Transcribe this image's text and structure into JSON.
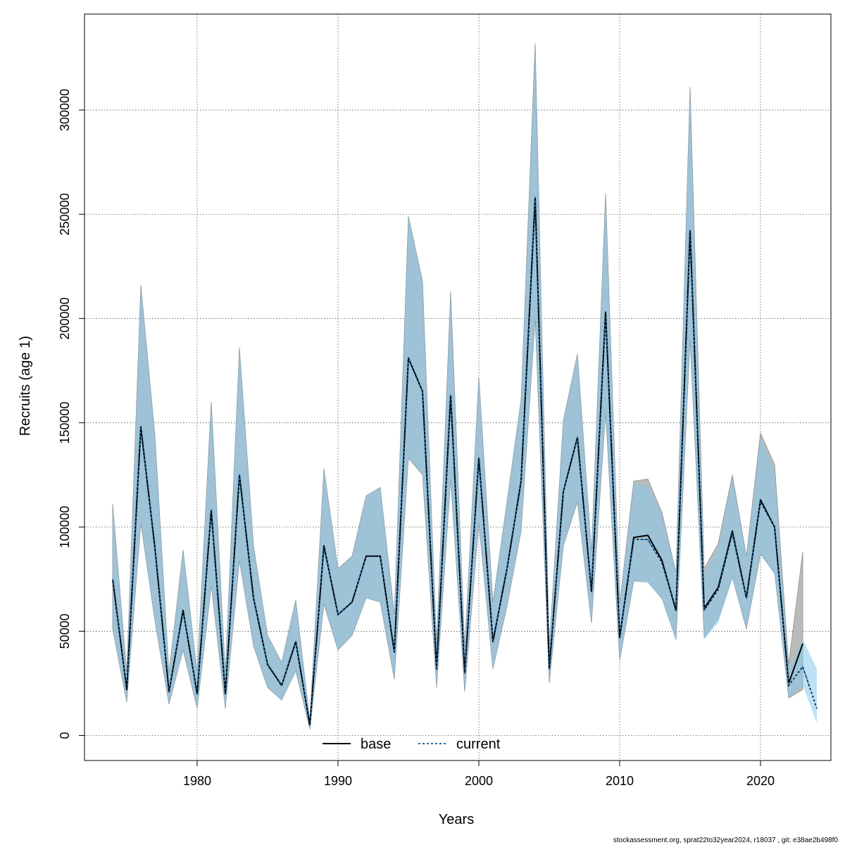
{
  "chart_data": {
    "type": "line",
    "title": "",
    "xlabel": "Years",
    "ylabel": "Recruits (age 1)",
    "xlim": [
      1972,
      2025
    ],
    "ylim": [
      -12000,
      346000
    ],
    "grid": true,
    "xticks": [
      1980,
      1990,
      2000,
      2010,
      2020
    ],
    "yticks": [
      0,
      50000,
      100000,
      150000,
      200000,
      250000,
      300000
    ],
    "x": [
      1974,
      1975,
      1976,
      1977,
      1978,
      1979,
      1980,
      1981,
      1982,
      1983,
      1984,
      1985,
      1986,
      1987,
      1988,
      1989,
      1990,
      1991,
      1992,
      1993,
      1994,
      1995,
      1996,
      1997,
      1998,
      1999,
      2000,
      2001,
      2002,
      2003,
      2004,
      2005,
      2006,
      2007,
      2008,
      2009,
      2010,
      2011,
      2012,
      2013,
      2014,
      2015,
      2016,
      2017,
      2018,
      2019,
      2020,
      2021,
      2022,
      2023
    ],
    "series": [
      {
        "name": "base",
        "color": "#000000",
        "dash": "solid",
        "band_color": "#b4b4b4",
        "values": [
          75000,
          22000,
          148000,
          90000,
          21000,
          60000,
          20000,
          108000,
          20000,
          125000,
          66000,
          34000,
          24000,
          45000,
          5000,
          91000,
          58000,
          64000,
          86000,
          86000,
          40000,
          181000,
          165000,
          32000,
          163000,
          30000,
          133000,
          45000,
          80000,
          122000,
          258000,
          32000,
          117000,
          143000,
          69000,
          203000,
          47000,
          95000,
          96000,
          84000,
          60000,
          242000,
          61000,
          71000,
          98000,
          66000,
          113000,
          100000,
          25000,
          44000
        ],
        "lower": [
          51000,
          16000,
          102000,
          55000,
          15000,
          41000,
          13000,
          72000,
          13000,
          84000,
          43000,
          23000,
          17000,
          31000,
          3000,
          63000,
          41000,
          48000,
          66000,
          64000,
          27000,
          133000,
          125000,
          23000,
          123000,
          21000,
          102000,
          32000,
          62000,
          98000,
          200000,
          25000,
          91000,
          112000,
          54000,
          155000,
          36000,
          74000,
          74000,
          66000,
          46000,
          190000,
          47000,
          56000,
          76000,
          51000,
          87000,
          78000,
          18000,
          22000
        ],
        "upper": [
          111000,
          30000,
          216000,
          144000,
          30000,
          89000,
          30000,
          160000,
          30000,
          186000,
          91000,
          48000,
          35000,
          65000,
          7000,
          128000,
          80000,
          86000,
          115000,
          119000,
          58000,
          249000,
          218000,
          44000,
          213000,
          42000,
          172000,
          64000,
          112000,
          161000,
          332000,
          42000,
          151000,
          183000,
          88000,
          260000,
          63000,
          122000,
          123000,
          107000,
          78000,
          311000,
          80000,
          92000,
          125000,
          86000,
          145000,
          130000,
          34000,
          88000
        ]
      },
      {
        "name": "current",
        "color": "#1f6fb0",
        "dash": "dotted",
        "band_color": "#86c8ec",
        "x": [
          1974,
          1975,
          1976,
          1977,
          1978,
          1979,
          1980,
          1981,
          1982,
          1983,
          1984,
          1985,
          1986,
          1987,
          1988,
          1989,
          1990,
          1991,
          1992,
          1993,
          1994,
          1995,
          1996,
          1997,
          1998,
          1999,
          2000,
          2001,
          2002,
          2003,
          2004,
          2005,
          2006,
          2007,
          2008,
          2009,
          2010,
          2011,
          2012,
          2013,
          2014,
          2015,
          2016,
          2017,
          2018,
          2019,
          2020,
          2021,
          2022,
          2023,
          2024
        ],
        "values": [
          75000,
          22000,
          148000,
          90000,
          21000,
          60000,
          20000,
          108000,
          20000,
          125000,
          66000,
          34000,
          24000,
          45000,
          5000,
          91000,
          58000,
          64000,
          86000,
          86000,
          40000,
          181000,
          165000,
          32000,
          163000,
          30000,
          133000,
          45000,
          80000,
          122000,
          258000,
          32000,
          117000,
          143000,
          69000,
          203000,
          47000,
          94000,
          94000,
          83000,
          60000,
          242000,
          60000,
          70000,
          97000,
          66000,
          112000,
          100000,
          24000,
          33000,
          13000
        ],
        "lower": [
          51000,
          16000,
          102000,
          55000,
          15000,
          41000,
          13000,
          72000,
          13000,
          84000,
          43000,
          23000,
          17000,
          31000,
          3000,
          63000,
          41000,
          48000,
          66000,
          64000,
          27000,
          133000,
          125000,
          23000,
          123000,
          21000,
          102000,
          32000,
          62000,
          98000,
          200000,
          25000,
          91000,
          112000,
          54000,
          155000,
          36000,
          74000,
          73000,
          65000,
          46000,
          190000,
          46000,
          54000,
          75000,
          51000,
          87000,
          77000,
          18000,
          24000,
          6000
        ],
        "upper": [
          111000,
          30000,
          216000,
          144000,
          30000,
          89000,
          30000,
          160000,
          30000,
          186000,
          91000,
          48000,
          35000,
          65000,
          7000,
          128000,
          80000,
          86000,
          115000,
          119000,
          58000,
          249000,
          218000,
          44000,
          213000,
          42000,
          172000,
          64000,
          112000,
          161000,
          332000,
          42000,
          151000,
          183000,
          88000,
          260000,
          63000,
          121000,
          120000,
          106000,
          78000,
          311000,
          78000,
          90000,
          124000,
          86000,
          143000,
          127000,
          32000,
          46000,
          32000
        ]
      }
    ],
    "legend": {
      "position": "bottom-center",
      "entries": [
        "base",
        "current"
      ]
    }
  },
  "footer_text": "stockassessment.org, sprat22to32year2024, r18037 , git: e38ae2b498f0"
}
